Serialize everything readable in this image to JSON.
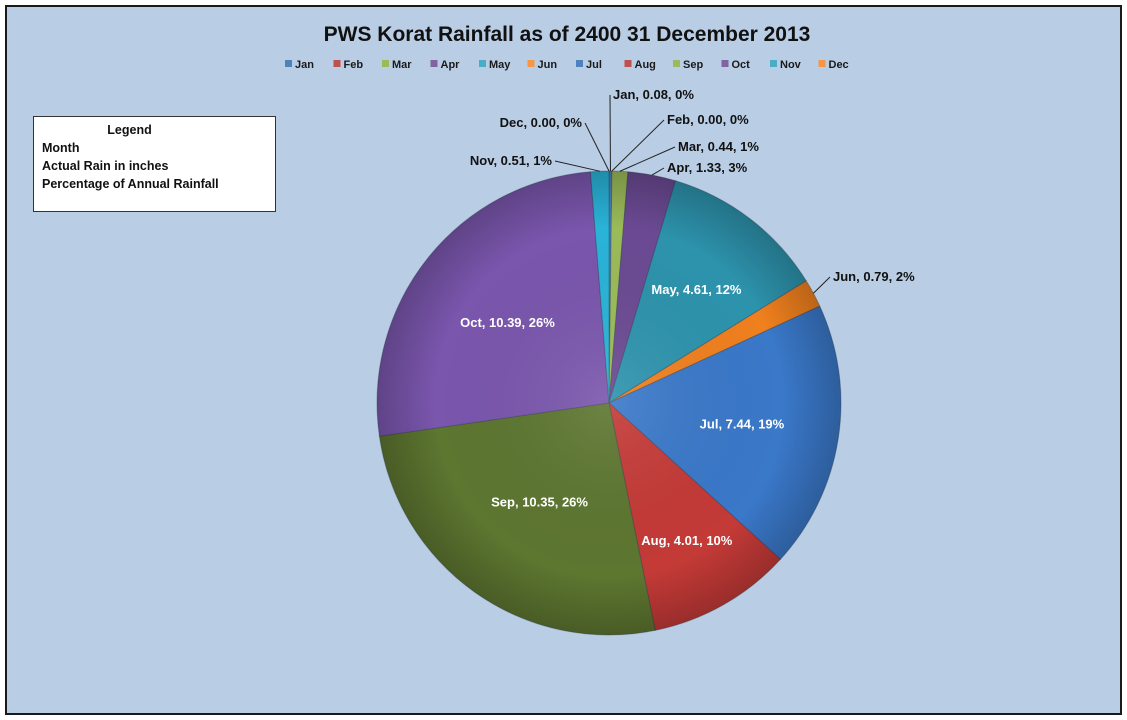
{
  "chart_data": {
    "type": "pie",
    "title": "PWS Korat Rainfall as of 2400 31 December 2013",
    "legend_position": "top",
    "categories": [
      "Jan",
      "Feb",
      "Mar",
      "Apr",
      "May",
      "Jun",
      "Jul",
      "Aug",
      "Sep",
      "Oct",
      "Nov",
      "Dec"
    ],
    "values": [
      0.08,
      0.0,
      0.44,
      1.33,
      4.61,
      0.79,
      7.44,
      4.01,
      10.35,
      10.39,
      0.51,
      0.0
    ],
    "data_labels": [
      "Jan, 0.08, 0%",
      "Feb, 0.00, 0%",
      "Mar, 0.44, 1%",
      "Apr, 1.33, 3%",
      "May, 4.61, 12%",
      "Jun, 0.79, 2%",
      "Jul, 7.44, 19%",
      "Aug, 4.01, 10%",
      "Sep, 10.35, 26%",
      "Oct, 10.39, 26%",
      "Nov, 0.51, 1%",
      "Dec, 0.00, 0%"
    ],
    "colors": [
      "#4f81bd",
      "#c0504d",
      "#9bbb59",
      "#8064a2",
      "#4bacc6",
      "#f79646",
      "#4f81bd",
      "#c0504d",
      "#9bbb59",
      "#8064a2",
      "#4bacc6",
      "#f79646"
    ],
    "slice_colors": [
      "#4f81bd",
      "#c0504d",
      "#9bbb59",
      "#6b4a93",
      "#2d93ad",
      "#f0801e",
      "#3a78c9",
      "#c43a37",
      "#5d7630",
      "#7a56ad",
      "#2ab3d8",
      "#f79646"
    ]
  },
  "key_box": {
    "title": "Legend",
    "lines": [
      "Month",
      "Actual Rain in inches",
      "Percentage of Annual Rainfall"
    ]
  }
}
